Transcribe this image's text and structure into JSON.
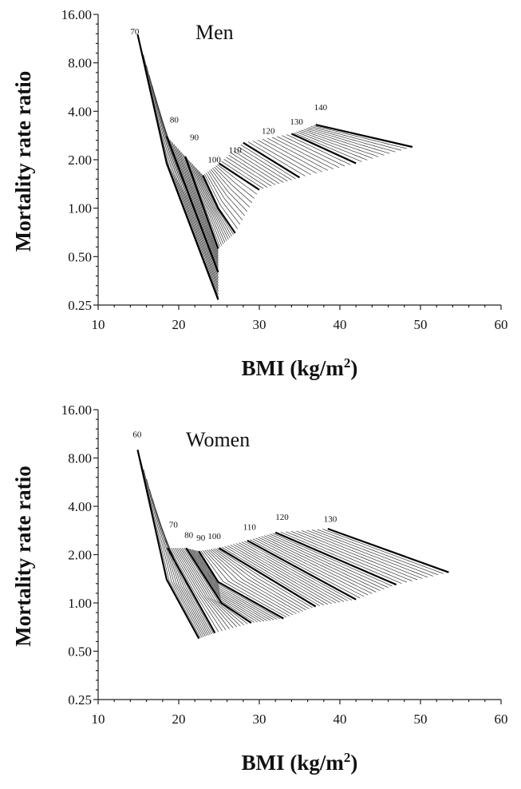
{
  "chart_data": [
    {
      "type": "line",
      "title": "Men",
      "xlabel_main": "BMI (kg/m",
      "xlabel_sup": "2",
      "xlabel_tail": ")",
      "ylabel": "Mortality rate ratio",
      "xlim": [
        10,
        60
      ],
      "ylim": [
        0.25,
        16
      ],
      "y_scale": "log2",
      "x_ticks": [
        "10",
        "20",
        "30",
        "40",
        "50",
        "60"
      ],
      "y_ticks": [
        "16.00",
        "8.00",
        "4.00",
        "2.00",
        "1.00",
        "0.50",
        "0.25"
      ],
      "grid": false,
      "series": [
        {
          "name": "70",
          "x": [
            14.9,
            18.5,
            24.9
          ],
          "y": [
            12.0,
            1.9,
            0.27
          ]
        },
        {
          "name": "80",
          "x": [
            18.5,
            24.9
          ],
          "y": [
            2.8,
            0.4
          ]
        },
        {
          "name": "90",
          "x": [
            20.8,
            24.9
          ],
          "y": [
            2.1,
            0.56
          ]
        },
        {
          "name": "100",
          "x": [
            23.0,
            24.9,
            27.0
          ],
          "y": [
            1.6,
            1.0,
            0.7
          ]
        },
        {
          "name": "110",
          "x": [
            25.0,
            30.0
          ],
          "y": [
            1.9,
            1.3
          ]
        },
        {
          "name": "120",
          "x": [
            28.0,
            35.0
          ],
          "y": [
            2.55,
            1.55
          ]
        },
        {
          "name": "130",
          "x": [
            34.0,
            42.0
          ],
          "y": [
            2.9,
            1.9
          ]
        },
        {
          "name": "140",
          "x": [
            37.0,
            49.0
          ],
          "y": [
            3.3,
            2.4
          ]
        }
      ],
      "curve_labels": [
        {
          "text": "70",
          "x": 14.0,
          "y": 12.0
        },
        {
          "text": "80",
          "x": 18.9,
          "y": 3.4
        },
        {
          "text": "90",
          "x": 21.4,
          "y": 2.65
        },
        {
          "text": "100",
          "x": 23.6,
          "y": 1.92
        },
        {
          "text": "110",
          "x": 26.2,
          "y": 2.2
        },
        {
          "text": "120",
          "x": 30.3,
          "y": 2.9
        },
        {
          "text": "130",
          "x": 33.8,
          "y": 3.3
        },
        {
          "text": "140",
          "x": 36.8,
          "y": 4.05
        }
      ]
    },
    {
      "type": "line",
      "title": "Women",
      "xlabel_main": "BMI (kg/m",
      "xlabel_sup": "2",
      "xlabel_tail": ")",
      "ylabel": "Mortality rate ratio",
      "xlim": [
        10,
        60
      ],
      "ylim": [
        0.25,
        16
      ],
      "y_scale": "log2",
      "x_ticks": [
        "10",
        "20",
        "30",
        "40",
        "50",
        "60"
      ],
      "y_ticks": [
        "16.00",
        "8.00",
        "4.00",
        "2.00",
        "1.00",
        "0.50",
        "0.25"
      ],
      "grid": false,
      "series": [
        {
          "name": "60",
          "x": [
            14.9,
            18.5,
            22.5
          ],
          "y": [
            9.0,
            1.4,
            0.6
          ]
        },
        {
          "name": "70",
          "x": [
            18.6,
            24.5
          ],
          "y": [
            2.2,
            0.65
          ]
        },
        {
          "name": "80",
          "x": [
            20.9,
            25.3,
            29.0
          ],
          "y": [
            2.2,
            1.0,
            0.75
          ]
        },
        {
          "name": "90",
          "x": [
            22.5,
            24.9,
            33.0
          ],
          "y": [
            2.1,
            1.35,
            0.8
          ]
        },
        {
          "name": "100",
          "x": [
            25.0,
            37.0
          ],
          "y": [
            2.2,
            0.95
          ]
        },
        {
          "name": "110",
          "x": [
            28.5,
            42.0
          ],
          "y": [
            2.45,
            1.05
          ]
        },
        {
          "name": "120",
          "x": [
            32.0,
            47.0
          ],
          "y": [
            2.75,
            1.3
          ]
        },
        {
          "name": "130",
          "x": [
            38.5,
            53.5
          ],
          "y": [
            2.9,
            1.55
          ]
        }
      ],
      "curve_labels": [
        {
          "text": "60",
          "x": 14.3,
          "y": 10.8
        },
        {
          "text": "70",
          "x": 18.8,
          "y": 2.95
        },
        {
          "text": "80",
          "x": 20.7,
          "y": 2.55
        },
        {
          "text": "90",
          "x": 22.2,
          "y": 2.45
        },
        {
          "text": "100",
          "x": 23.6,
          "y": 2.5
        },
        {
          "text": "110",
          "x": 28.0,
          "y": 2.85
        },
        {
          "text": "120",
          "x": 32.0,
          "y": 3.3
        },
        {
          "text": "130",
          "x": 38.0,
          "y": 3.2
        }
      ]
    }
  ]
}
